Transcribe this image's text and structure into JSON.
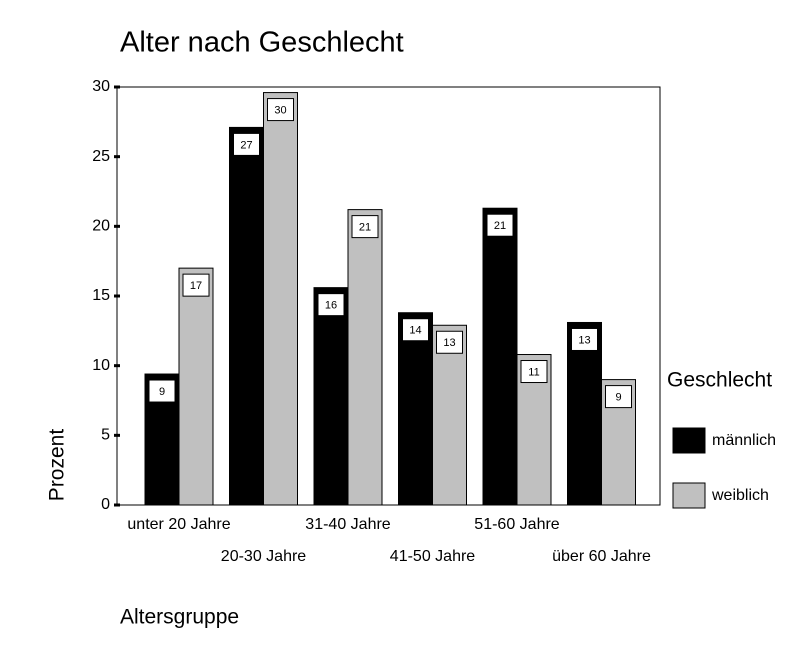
{
  "chart_data": {
    "type": "bar",
    "title": "Alter nach Geschlecht",
    "x_label": "Altersgruppe",
    "y_label": "Prozent",
    "categories": [
      "unter 20 Jahre",
      "20-30 Jahre",
      "31-40 Jahre",
      "41-50 Jahre",
      "51-60 Jahre",
      "über 60 Jahre"
    ],
    "series": [
      {
        "name": "männlich",
        "color": "#000000",
        "values": [
          9.4,
          27.1,
          15.6,
          13.8,
          21.3,
          13.1
        ],
        "value_labels": [
          "9",
          "27",
          "16",
          "14",
          "21",
          "13"
        ]
      },
      {
        "name": "weiblich",
        "color": "#c0c0c0",
        "values": [
          17.0,
          29.6,
          21.2,
          12.9,
          10.8,
          9.0
        ],
        "value_labels": [
          "17",
          "30",
          "21",
          "13",
          "11",
          "9"
        ]
      }
    ],
    "ylim": [
      0,
      30
    ],
    "yticks": [
      0,
      5,
      10,
      15,
      20,
      25,
      30
    ],
    "legend_title": "Geschlecht",
    "legend_position": "right"
  }
}
